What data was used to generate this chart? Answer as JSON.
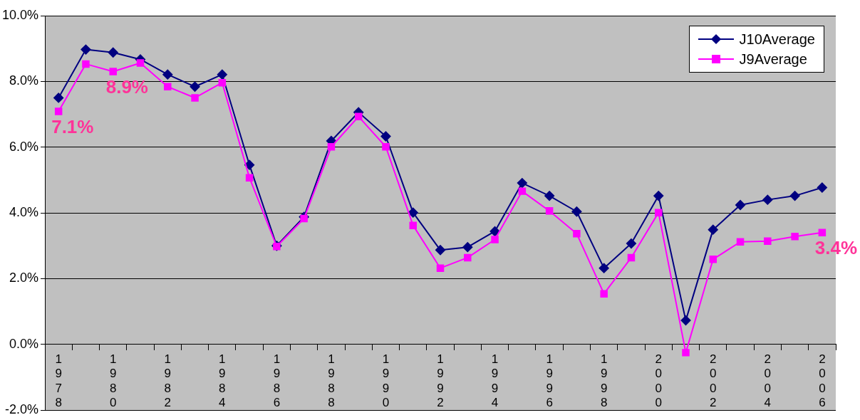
{
  "chart_data": {
    "type": "line",
    "categories": [
      "1978",
      null,
      "1980",
      null,
      "1982",
      null,
      "1984",
      null,
      "1986",
      null,
      "1988",
      null,
      "1990",
      null,
      "1992",
      null,
      "1994",
      null,
      "1996",
      null,
      "1998",
      null,
      "2000",
      null,
      "2002",
      null,
      "2004",
      null,
      "2006"
    ],
    "series": [
      {
        "name": "J10Average",
        "color": "#000080",
        "marker": "diamond",
        "values": [
          7.5,
          8.97,
          8.88,
          8.67,
          8.21,
          7.84,
          8.21,
          5.46,
          3.0,
          3.88,
          6.19,
          7.06,
          6.33,
          4.01,
          2.87,
          2.96,
          3.44,
          4.91,
          4.52,
          4.04,
          2.32,
          3.07,
          4.52,
          0.73,
          3.49,
          4.24,
          4.4,
          4.52,
          4.77
        ]
      },
      {
        "name": "J9Average",
        "color": "#ff00ff",
        "marker": "square",
        "values": [
          7.09,
          8.53,
          8.3,
          8.56,
          7.84,
          7.5,
          7.96,
          5.07,
          2.98,
          3.83,
          6.01,
          6.93,
          6.01,
          3.62,
          2.32,
          2.64,
          3.19,
          4.66,
          4.06,
          3.37,
          1.54,
          2.64,
          4.01,
          -0.25,
          2.59,
          3.12,
          3.14,
          3.28,
          3.4
        ]
      }
    ],
    "ylim": [
      -2,
      10
    ],
    "yticks": [
      {
        "value": -2,
        "label": "-2.0%"
      },
      {
        "value": 0,
        "label": "0.0%"
      },
      {
        "value": 2,
        "label": "2.0%"
      },
      {
        "value": 4,
        "label": "4.0%"
      },
      {
        "value": 6,
        "label": "6.0%"
      },
      {
        "value": 8,
        "label": "8.0%"
      },
      {
        "value": 10,
        "label": "10.0%"
      }
    ],
    "grid": "y",
    "legend": "top right",
    "line_style": "solid",
    "annotations": [
      {
        "text": "7.1%",
        "x": "1978",
        "y": 7.1
      },
      {
        "text": "8.9%",
        "y": 8.9
      },
      {
        "text": "3.4%",
        "x": "2006",
        "y": 3.4
      }
    ]
  }
}
